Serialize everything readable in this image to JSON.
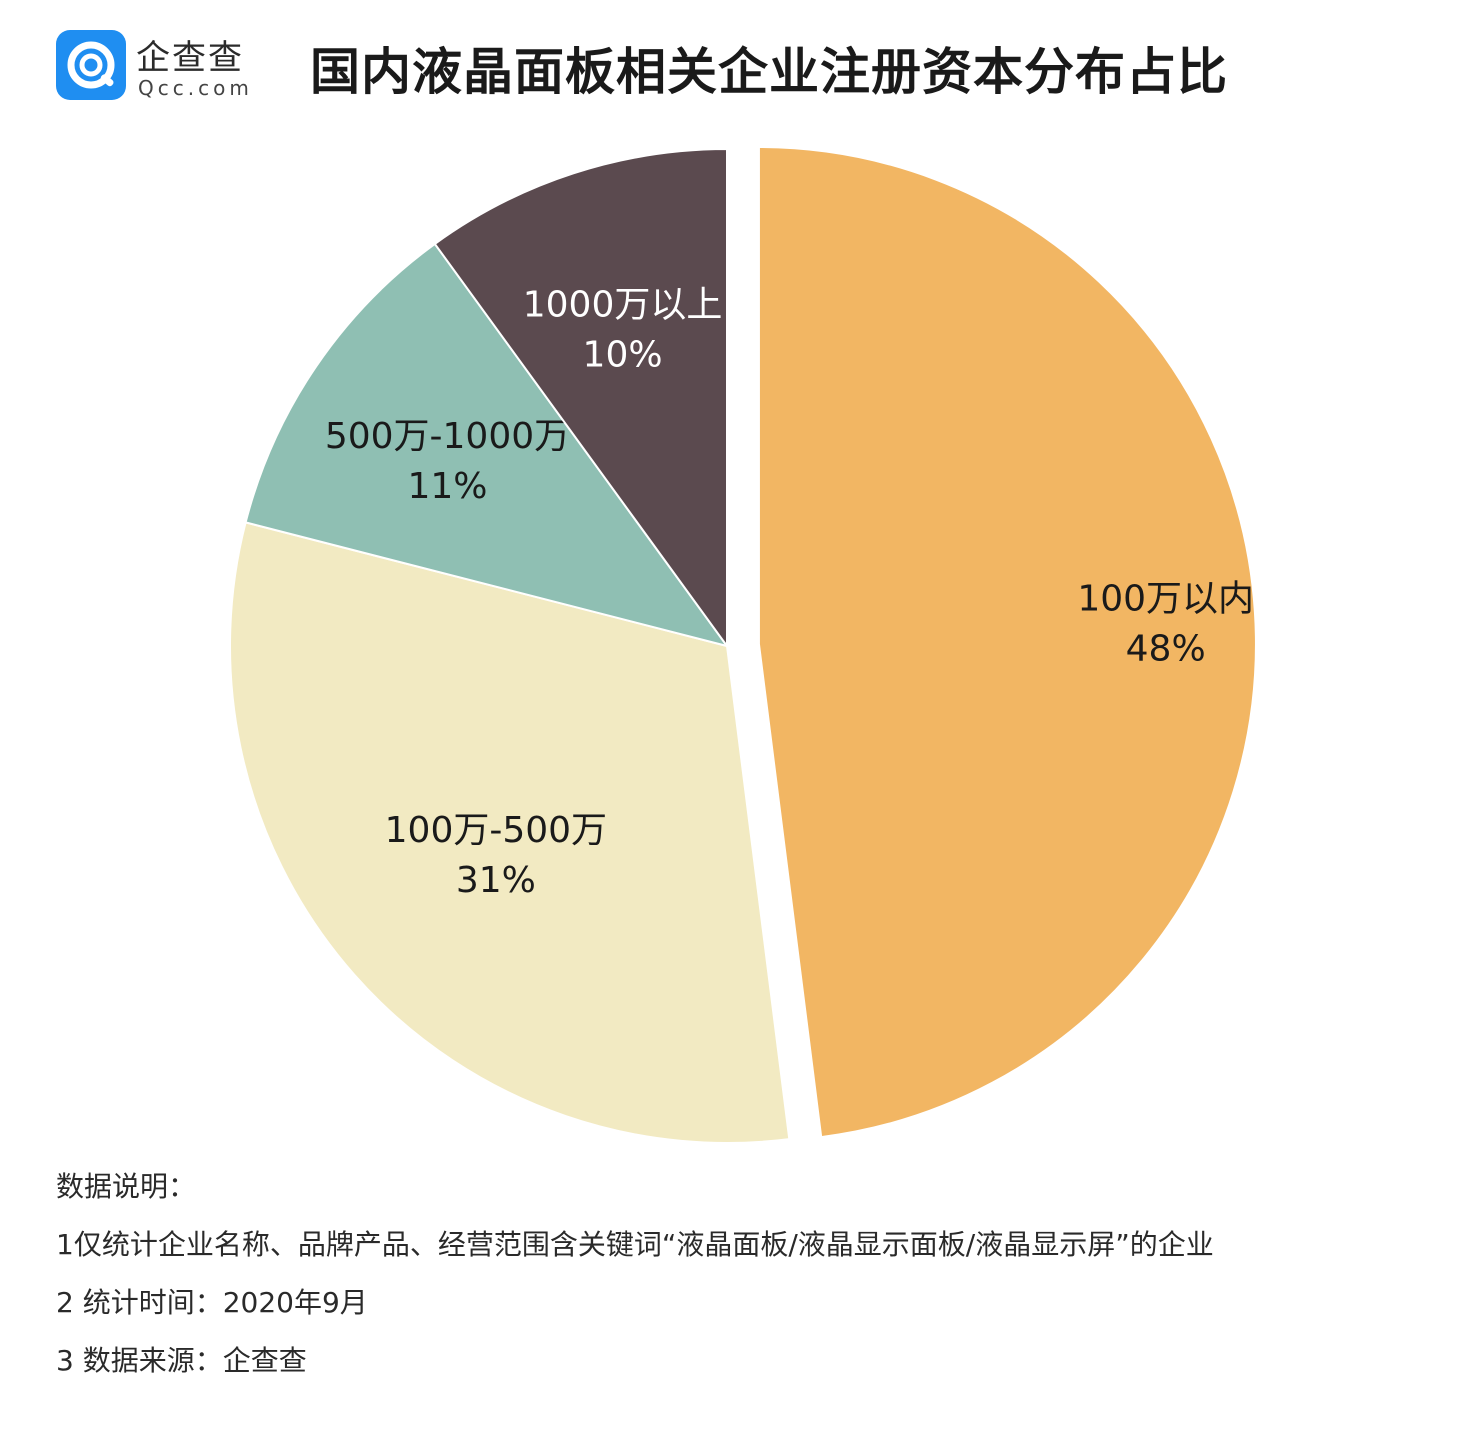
{
  "logo": {
    "name_cn": "企查查",
    "name_en": "Qcc.com"
  },
  "title": "国内液晶面板相关企业注册资本分布占比",
  "chart_data": {
    "type": "pie",
    "title": "国内液晶面板相关企业注册资本分布占比",
    "slices": [
      {
        "label": "100万以内",
        "value": 48,
        "value_label": "48%",
        "color": "#F2B663",
        "exploded": true
      },
      {
        "label": "100万-500万",
        "value": 31,
        "value_label": "31%",
        "color": "#F2EAC2",
        "exploded": false
      },
      {
        "label": "500万-1000万",
        "value": 11,
        "value_label": "11%",
        "color": "#8FBFB3",
        "exploded": false
      },
      {
        "label": "1000万以上",
        "value": 10,
        "value_label": "10%",
        "color": "#5B4A4F",
        "exploded": false
      }
    ],
    "start": "12 o'clock",
    "direction": "clockwise",
    "legend": "none"
  },
  "notes": {
    "heading": "数据说明：",
    "line1": "1仅统计企业名称、品牌产品、经营范围含关键词“液晶面板/液晶显示面板/液晶显示屏”的企业",
    "line2": "2 统计时间：2020年9月",
    "line3": "3 数据来源：企查查"
  }
}
